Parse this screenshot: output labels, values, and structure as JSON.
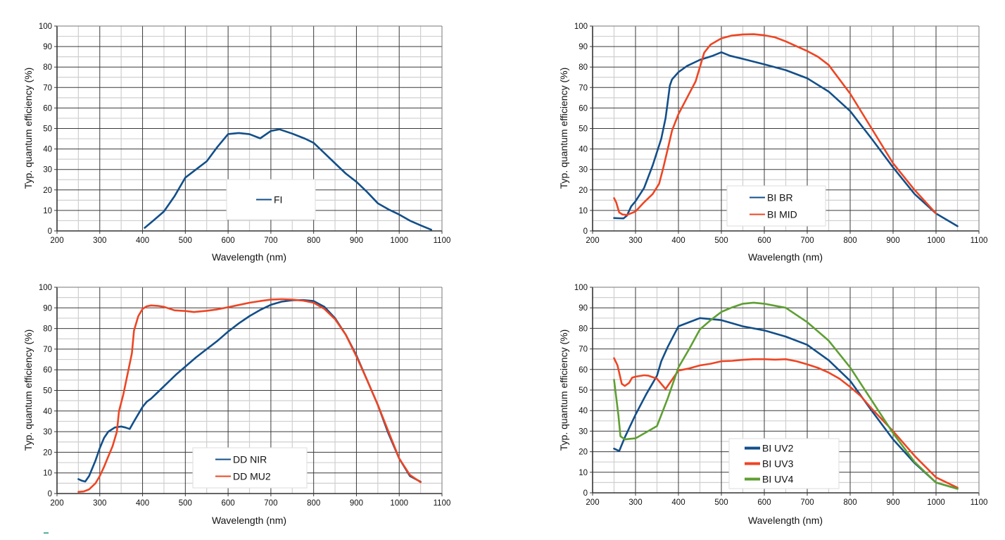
{
  "colors": {
    "blue": "#124f8a",
    "red": "#ee4523",
    "green": "#5e9f32",
    "grid_major": "#3a3a3a",
    "grid_minor": "#cfcfcf",
    "axis": "#333333"
  },
  "chart_data": [
    {
      "id": "fi",
      "type": "line",
      "title": "",
      "xlabel": "Wavelength (nm)",
      "ylabel": "Typ. quantum efficiency (%)",
      "xlim": [
        200,
        1100
      ],
      "ylim": [
        0,
        100
      ],
      "xticks": [
        200,
        300,
        400,
        500,
        600,
        700,
        800,
        900,
        1000,
        1100
      ],
      "yticks": [
        0,
        10,
        20,
        30,
        40,
        50,
        60,
        70,
        80,
        90,
        100
      ],
      "grid": true,
      "legend_position": "center-bottom",
      "series": [
        {
          "name": "FI",
          "color": "blue",
          "x": [
            405,
            425,
            450,
            475,
            500,
            525,
            550,
            575,
            600,
            625,
            650,
            675,
            700,
            720,
            750,
            780,
            800,
            825,
            850,
            875,
            900,
            925,
            950,
            975,
            1000,
            1025,
            1050,
            1075
          ],
          "y": [
            1.5,
            5,
            9.5,
            17,
            26,
            30,
            34,
            41,
            47.3,
            47.8,
            47.2,
            45.2,
            48.8,
            49.6,
            47.5,
            45,
            43,
            38,
            33,
            28,
            24,
            19,
            13.5,
            10.5,
            8,
            5,
            2.7,
            0.6
          ]
        }
      ]
    },
    {
      "id": "bi",
      "type": "line",
      "title": "",
      "xlabel": "Wavelength (nm)",
      "ylabel": "Typ. quantum efficiency (%)",
      "xlim": [
        200,
        1100
      ],
      "ylim": [
        0,
        100
      ],
      "xticks": [
        200,
        300,
        400,
        500,
        600,
        700,
        800,
        900,
        1000,
        1100
      ],
      "yticks": [
        0,
        10,
        20,
        30,
        40,
        50,
        60,
        70,
        80,
        90,
        100
      ],
      "grid": true,
      "legend_position": "center-bottom",
      "series": [
        {
          "name": "BI BR",
          "color": "blue",
          "x": [
            250,
            260,
            272,
            280,
            290,
            300,
            320,
            340,
            360,
            370,
            375,
            380,
            385,
            400,
            420,
            450,
            480,
            500,
            520,
            550,
            600,
            650,
            700,
            750,
            800,
            850,
            900,
            950,
            1000,
            1050
          ],
          "y": [
            6.3,
            6.2,
            6.1,
            7.5,
            12,
            14.5,
            21,
            32,
            45,
            55,
            63,
            71,
            74,
            77.5,
            80.5,
            83.5,
            85.5,
            87.2,
            85.5,
            84,
            81.3,
            78.5,
            74.5,
            68,
            58.5,
            45,
            31,
            18,
            8.5,
            2.3
          ]
        },
        {
          "name": "BI MID",
          "color": "red",
          "x": [
            250,
            255,
            262,
            270,
            280,
            300,
            320,
            340,
            355,
            365,
            375,
            385,
            400,
            420,
            440,
            450,
            460,
            475,
            500,
            525,
            550,
            575,
            600,
            625,
            650,
            700,
            725,
            750,
            800,
            850,
            900,
            950,
            1000
          ],
          "y": [
            16,
            14,
            9,
            8,
            7.8,
            9.5,
            14,
            18,
            23,
            31,
            40,
            49,
            57,
            65,
            73,
            80,
            87,
            91,
            94,
            95.4,
            95.9,
            96,
            95.5,
            94.5,
            92.5,
            87.8,
            85,
            81,
            67,
            50,
            33,
            20,
            8.5
          ]
        }
      ]
    },
    {
      "id": "dd",
      "type": "line",
      "title": "",
      "xlabel": "Wavelength (nm)",
      "ylabel": "Typ. quantum efficiency (%)",
      "xlim": [
        200,
        1100
      ],
      "ylim": [
        0,
        100
      ],
      "xticks": [
        200,
        300,
        400,
        500,
        600,
        700,
        800,
        900,
        1000,
        1100
      ],
      "yticks": [
        0,
        10,
        20,
        30,
        40,
        50,
        60,
        70,
        80,
        90,
        100
      ],
      "grid": true,
      "legend_position": "center-bottom",
      "series": [
        {
          "name": "DD NIR",
          "color": "blue",
          "x": [
            250,
            258,
            266,
            275,
            290,
            300,
            310,
            320,
            335,
            350,
            360,
            370,
            380,
            390,
            400,
            410,
            420,
            440,
            460,
            480,
            500,
            525,
            550,
            575,
            600,
            625,
            650,
            675,
            700,
            725,
            750,
            775,
            800,
            825,
            850,
            875,
            900,
            925,
            950,
            975,
            1000,
            1025,
            1050
          ],
          "y": [
            7,
            6.2,
            5.8,
            8.5,
            16,
            22,
            27,
            30,
            32,
            32.5,
            32,
            31.3,
            35,
            38.5,
            42,
            44.5,
            46,
            50,
            54,
            58,
            61.5,
            66,
            70,
            74,
            78.5,
            82.5,
            86,
            89,
            91.5,
            93,
            93.7,
            93.8,
            93.3,
            90.5,
            85,
            77,
            67,
            55,
            43,
            29,
            17,
            8.5,
            5.7
          ]
        },
        {
          "name": "DD MU2",
          "color": "red",
          "x": [
            250,
            262,
            275,
            290,
            300,
            310,
            320,
            330,
            340,
            345,
            355,
            365,
            375,
            380,
            390,
            400,
            410,
            420,
            435,
            450,
            475,
            500,
            520,
            550,
            575,
            600,
            625,
            650,
            675,
            700,
            725,
            750,
            775,
            800,
            825,
            850,
            875,
            900,
            925,
            950,
            975,
            1000,
            1025,
            1050
          ],
          "y": [
            0.8,
            1,
            2,
            5,
            8.5,
            13,
            18,
            23,
            30,
            40,
            48,
            58,
            68,
            79,
            86,
            89.5,
            90.8,
            91.2,
            91,
            90.5,
            88.8,
            88.5,
            88,
            88.6,
            89.3,
            90.3,
            91.4,
            92.5,
            93.3,
            94,
            94.2,
            94,
            93.5,
            92.5,
            89.5,
            84.5,
            77,
            66.5,
            55,
            43,
            30,
            17,
            9,
            5.5
          ]
        }
      ]
    },
    {
      "id": "uv",
      "type": "line",
      "title": "",
      "xlabel": "Wavelength (nm)",
      "ylabel": "Typ. quantum efficiency (%)",
      "xlim": [
        200,
        1100
      ],
      "ylim": [
        0,
        100
      ],
      "xticks": [
        200,
        300,
        400,
        500,
        600,
        700,
        800,
        900,
        1000,
        1100
      ],
      "yticks": [
        0,
        10,
        20,
        30,
        40,
        50,
        60,
        70,
        80,
        90,
        100
      ],
      "grid": true,
      "legend_position": "center-bottom",
      "series": [
        {
          "name": "BI UV2",
          "color": "blue",
          "x": [
            250,
            262,
            275,
            300,
            325,
            350,
            360,
            375,
            400,
            425,
            450,
            500,
            550,
            600,
            650,
            700,
            750,
            800,
            850,
            900,
            950,
            1000,
            1050
          ],
          "y": [
            21.5,
            20.3,
            27,
            38,
            48,
            57,
            64,
            71,
            81,
            83,
            85,
            84,
            81,
            79,
            76,
            72,
            64.5,
            54.5,
            40,
            26,
            14.5,
            5,
            2
          ]
        },
        {
          "name": "BI UV3",
          "color": "red",
          "x": [
            250,
            258,
            268,
            275,
            285,
            292,
            300,
            320,
            330,
            350,
            362,
            370,
            380,
            400,
            425,
            450,
            475,
            500,
            525,
            550,
            575,
            600,
            625,
            650,
            675,
            700,
            725,
            750,
            775,
            800,
            825,
            850,
            900,
            950,
            1000,
            1050
          ],
          "y": [
            65.5,
            62,
            53,
            52,
            53.5,
            56,
            56.5,
            57.2,
            57,
            55.5,
            52.5,
            50.5,
            53.5,
            59.5,
            60.5,
            62,
            62.8,
            64,
            64.2,
            64.7,
            65,
            65,
            64.8,
            65,
            64,
            62.5,
            60.8,
            58.5,
            55.5,
            51.5,
            47,
            41,
            30,
            18,
            7.5,
            2.5
          ]
        },
        {
          "name": "BI UV4",
          "color": "green",
          "x": [
            250,
            260,
            265,
            275,
            300,
            325,
            350,
            375,
            400,
            425,
            450,
            475,
            500,
            525,
            550,
            575,
            600,
            625,
            650,
            700,
            750,
            800,
            850,
            900,
            950,
            1000,
            1050
          ],
          "y": [
            55,
            38,
            27.5,
            26,
            26.5,
            29.5,
            32.5,
            46,
            61,
            70,
            79.5,
            84,
            88,
            90.2,
            92,
            92.5,
            92,
            91,
            90,
            83,
            74,
            61,
            45,
            29,
            15,
            5,
            2
          ]
        }
      ]
    }
  ]
}
